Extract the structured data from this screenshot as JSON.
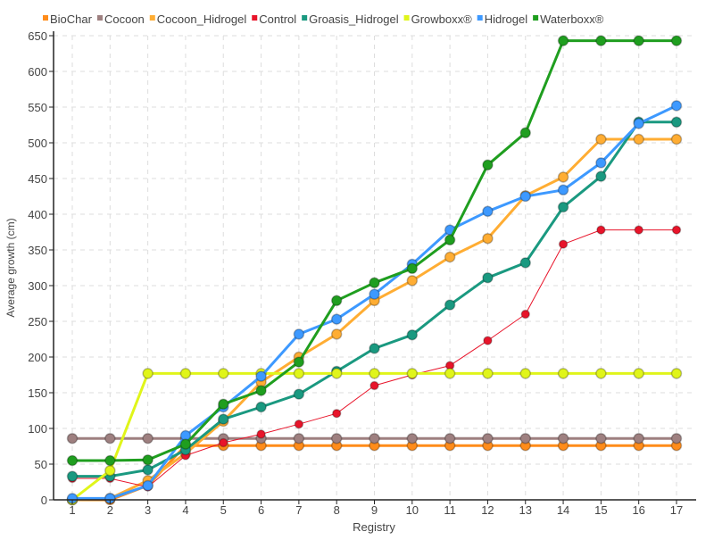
{
  "chart_data": {
    "type": "line",
    "title": "",
    "xlabel": "Registry",
    "ylabel": "Average growth (cm)",
    "x": [
      1,
      2,
      3,
      4,
      5,
      6,
      7,
      8,
      9,
      10,
      11,
      12,
      13,
      14,
      15,
      16,
      17
    ],
    "ylim": [
      0,
      650
    ],
    "yticks": [
      0,
      50,
      100,
      150,
      200,
      250,
      300,
      350,
      400,
      450,
      500,
      550,
      600,
      650
    ],
    "grid": true,
    "legend_position": "top",
    "series": [
      {
        "name": "BioChar",
        "color": "#ff8c1a",
        "values": [
          0,
          0,
          20,
          76,
          76,
          76,
          76,
          76,
          76,
          76,
          76,
          76,
          76,
          76,
          76,
          76,
          76
        ]
      },
      {
        "name": "Cocoon",
        "color": "#9e8080",
        "values": [
          86,
          86,
          86,
          86,
          86,
          86,
          86,
          86,
          86,
          86,
          86,
          86,
          86,
          86,
          86,
          86,
          86
        ]
      },
      {
        "name": "Cocoon_Hidrogel",
        "color": "#ffad33",
        "values": [
          0,
          2,
          27,
          65,
          110,
          165,
          200,
          232,
          279,
          307,
          340,
          366,
          426,
          452,
          505,
          505,
          505
        ]
      },
      {
        "name": "Control",
        "color": "#e8142a",
        "values": [
          30,
          30,
          18,
          62,
          80,
          92,
          106,
          121,
          160,
          175,
          188,
          223,
          260,
          358,
          378,
          378,
          378
        ]
      },
      {
        "name": "Groasis_Hidrogel",
        "color": "#1a9980",
        "values": [
          33,
          33,
          42,
          70,
          113,
          130,
          148,
          180,
          212,
          231,
          273,
          311,
          332,
          410,
          453,
          529,
          529
        ]
      },
      {
        "name": "Growboxx®",
        "color": "#e0f51a",
        "values": [
          0,
          41,
          177,
          177,
          177,
          177,
          177,
          177,
          177,
          177,
          177,
          177,
          177,
          177,
          177,
          177,
          177
        ]
      },
      {
        "name": "Hidrogel",
        "color": "#3d99ff",
        "values": [
          2,
          2,
          20,
          90,
          130,
          173,
          232,
          253,
          288,
          330,
          378,
          404,
          425,
          434,
          472,
          527,
          552
        ]
      },
      {
        "name": "Waterboxx®",
        "color": "#1f9e1f",
        "values": [
          55,
          55,
          56,
          78,
          134,
          153,
          193,
          279,
          304,
          324,
          364,
          469,
          514,
          643,
          643,
          643,
          643
        ]
      }
    ]
  }
}
